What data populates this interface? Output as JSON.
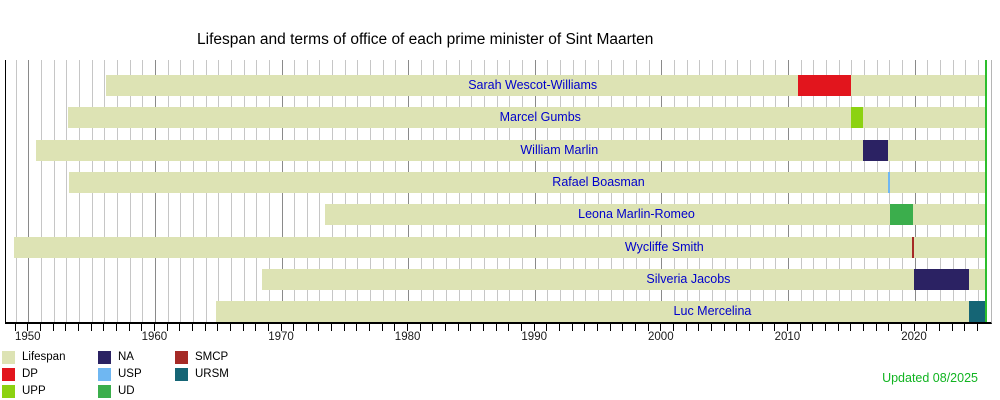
{
  "title": "Lifespan and terms of office of each prime minister of Sint Maarten",
  "updated_label": "Updated 08/2025",
  "colors": {
    "lifespan": "#dde3b4",
    "DP": "#e2151d",
    "UPP": "#8cd211",
    "NA": "#2b2263",
    "USP": "#6fb7f2",
    "UD": "#3bae4c",
    "SMCP": "#a52a26",
    "URSM": "#156575",
    "now_line": "#2dbe2d",
    "updated_text": "#11b421",
    "name_text": "#0000cc",
    "gridline_minor": "#c6c6c6",
    "gridline_decade": "#8a8a8a",
    "axis": "#000000"
  },
  "legend": {
    "items": [
      {
        "label": "Lifespan",
        "color_key": "lifespan"
      },
      {
        "label": "DP",
        "color_key": "DP"
      },
      {
        "label": "UPP",
        "color_key": "UPP"
      },
      {
        "label": "NA",
        "color_key": "NA"
      },
      {
        "label": "USP",
        "color_key": "USP"
      },
      {
        "label": "UD",
        "color_key": "UD"
      },
      {
        "label": "SMCP",
        "color_key": "SMCP"
      },
      {
        "label": "URSM",
        "color_key": "URSM"
      }
    ]
  },
  "chart_data": {
    "type": "bar",
    "subtype": "lifespan-term-timeline",
    "title": "Lifespan and terms of office of each prime minister of Sint Maarten",
    "x_axis": {
      "range": [
        1948.2,
        2026
      ],
      "tick_label_years": [
        1950,
        1960,
        1970,
        1980,
        1990,
        2000,
        2010,
        2020
      ],
      "minor_tick_interval_years": 1,
      "gridlines": true
    },
    "now_year": 2025.6,
    "legend_position": "bottom-left",
    "rows": [
      {
        "name": "Sarah Wescot-Williams",
        "party": "DP",
        "birth_year": 1956.1,
        "lifespan_end": "present",
        "term_start": 2010.78,
        "term_end": 2014.97,
        "label_year": 1989.8
      },
      {
        "name": "Marcel Gumbs",
        "party": "UPP",
        "birth_year": 1953.1,
        "lifespan_end": "present",
        "term_start": 2014.97,
        "term_end": 2015.88,
        "label_year": 1990.4
      },
      {
        "name": "William Marlin",
        "party": "NA",
        "birth_year": 1950.6,
        "lifespan_end": "present",
        "term_start": 2015.88,
        "term_end": 2017.9,
        "label_year": 1991.9
      },
      {
        "name": "Rafael Boasman",
        "party": "USP",
        "birth_year": 1953.2,
        "lifespan_end": "present",
        "term_start": 2017.9,
        "term_end": 2018.04,
        "label_year": 1995.0
      },
      {
        "name": "Leona Marlin-Romeo",
        "party": "UD",
        "birth_year": 1973.4,
        "lifespan_end": "present",
        "term_start": 2018.04,
        "term_end": 2019.85,
        "label_year": 1998.0
      },
      {
        "name": "Wycliffe Smith",
        "party": "SMCP",
        "birth_year": 1948.85,
        "lifespan_end": "present",
        "term_start": 2019.78,
        "term_end": 2019.86,
        "label_year": 2000.2
      },
      {
        "name": "Silveria Jacobs",
        "party": "NA",
        "birth_year": 1968.4,
        "lifespan_end": "present",
        "term_start": 2019.88,
        "term_end": 2024.25,
        "label_year": 2002.1
      },
      {
        "name": "Luc Mercelina",
        "party": "URSM",
        "birth_year": 1964.8,
        "lifespan_end": "present",
        "term_start": 2024.25,
        "term_end": "present",
        "label_year": 2004.0
      }
    ]
  }
}
